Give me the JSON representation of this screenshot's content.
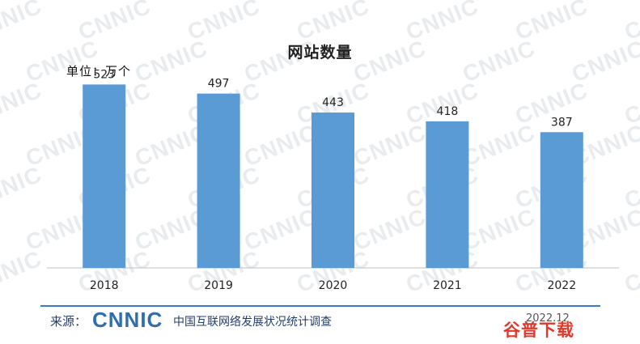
{
  "chart_data": {
    "type": "bar",
    "title": "网站数量",
    "unit_label": "单位：万个",
    "categories": [
      "2018",
      "2019",
      "2020",
      "2021",
      "2022"
    ],
    "values": [
      523,
      497,
      443,
      418,
      387
    ],
    "data_labels": [
      "523",
      "497",
      "443",
      "418",
      "387"
    ],
    "ylim": [
      0,
      600
    ],
    "bar_color": "#5b9bd5",
    "grid": false,
    "legend": "none"
  },
  "footer": {
    "source_label": "来源：",
    "source_logo": "CNNIC",
    "source_desc": "中国互联网络发展状况统计调查",
    "date": "2022.12"
  },
  "watermark": {
    "text": "CNNIC",
    "color": "#e9ecef"
  },
  "site_logo": "谷普下载"
}
